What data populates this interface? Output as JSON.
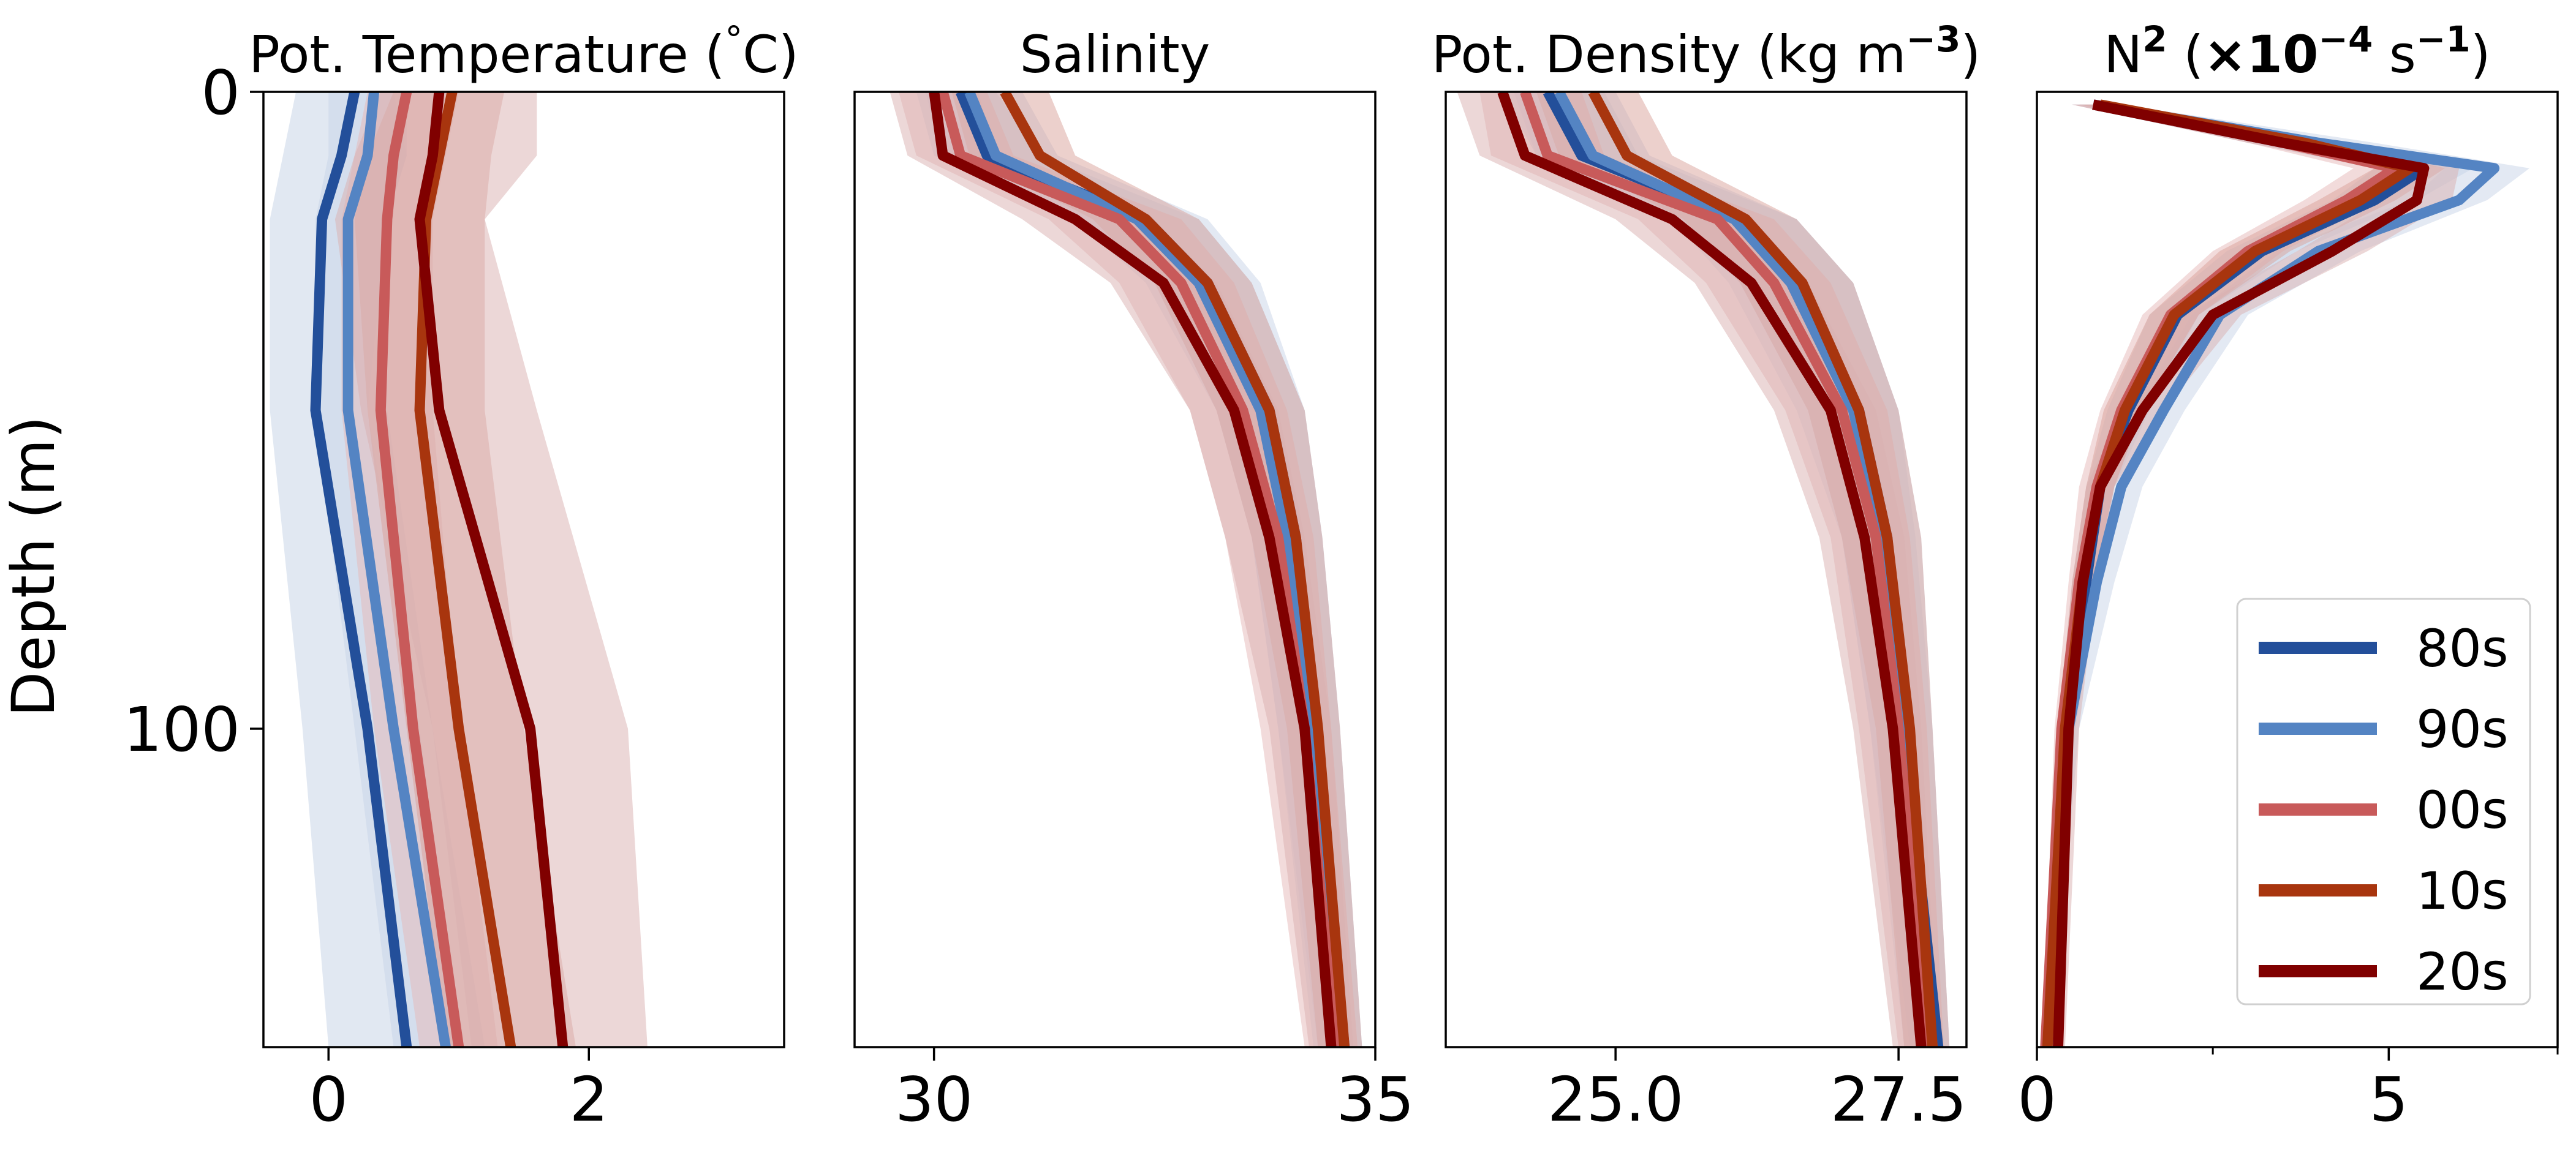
{
  "figure": {
    "ylabel": "Depth (m)",
    "depth_ticks": [
      "0",
      "100"
    ],
    "colors": {
      "80s": "#234f9a",
      "90s": "#5484c3",
      "00s": "#c85a5a",
      "10s": "#a8350e",
      "20s": "#800000"
    },
    "band_colors": {
      "80s": "#c3d1e6",
      "90s": "#c8d4e8",
      "00s": "#e6b8b8",
      "10s": "#d9a29a",
      "20s": "#d9b0b0"
    },
    "legend": {
      "placement": "lower right",
      "entries": [
        "80s",
        "90s",
        "00s",
        "10s",
        "20s"
      ]
    }
  },
  "chart_data": [
    {
      "type": "line",
      "title_parts": [
        {
          "text": "Pot. Temperature (",
          "style": "normal"
        },
        {
          "text": "°",
          "style": "sup"
        },
        {
          "text": "C)",
          "style": "normal"
        }
      ],
      "xlim": [
        -0.5,
        3.5
      ],
      "ylim": [
        150,
        0
      ],
      "xticks": [
        {
          "value": 0,
          "label": "0"
        },
        {
          "value": 2,
          "label": "2"
        }
      ],
      "depth": [
        0,
        10,
        20,
        50,
        100,
        150
      ],
      "series": [
        {
          "name": "80s",
          "values": [
            0.2,
            0.1,
            -0.05,
            -0.1,
            0.3,
            0.6
          ],
          "lower": [
            -0.25,
            -0.35,
            -0.45,
            -0.45,
            -0.2,
            0.0
          ],
          "upper": [
            0.5,
            0.6,
            0.45,
            0.3,
            0.7,
            1.0
          ]
        },
        {
          "name": "90s",
          "values": [
            0.35,
            0.3,
            0.15,
            0.15,
            0.5,
            0.9
          ],
          "lower": [
            0.0,
            0.0,
            -0.1,
            -0.1,
            0.2,
            0.5
          ],
          "upper": [
            0.6,
            0.6,
            0.45,
            0.45,
            0.8,
            1.2
          ]
        },
        {
          "name": "00s",
          "values": [
            0.6,
            0.5,
            0.45,
            0.4,
            0.65,
            1.0
          ],
          "lower": [
            0.3,
            0.2,
            0.1,
            0.1,
            0.35,
            0.7
          ],
          "upper": [
            1.0,
            0.9,
            0.8,
            0.8,
            1.0,
            1.3
          ]
        },
        {
          "name": "10s",
          "values": [
            0.95,
            0.85,
            0.75,
            0.7,
            1.0,
            1.4
          ],
          "lower": [
            0.5,
            0.3,
            0.2,
            0.3,
            0.6,
            0.9
          ],
          "upper": [
            1.35,
            1.25,
            1.2,
            1.2,
            1.5,
            1.9
          ]
        },
        {
          "name": "20s",
          "values": [
            0.85,
            0.8,
            0.7,
            0.85,
            1.55,
            1.8
          ],
          "lower": [
            0.4,
            0.2,
            0.05,
            0.25,
            0.8,
            1.1
          ],
          "upper": [
            1.6,
            1.6,
            1.2,
            1.6,
            2.3,
            2.45
          ]
        }
      ]
    },
    {
      "type": "line",
      "title_parts": [
        {
          "text": "Salinity",
          "style": "normal"
        }
      ],
      "xlim": [
        29.1,
        35.0
      ],
      "ylim": [
        150,
        0
      ],
      "xticks": [
        {
          "value": 30,
          "label": "30"
        },
        {
          "value": 35,
          "label": "35"
        }
      ],
      "depth": [
        0,
        10,
        20,
        30,
        50,
        70,
        100,
        150
      ],
      "series": [
        {
          "name": "80s",
          "values": [
            30.3,
            30.6,
            32.4,
            33.1,
            33.8,
            34.1,
            34.3,
            34.65
          ],
          "lower": [
            29.8,
            30.0,
            31.6,
            32.5,
            33.2,
            33.6,
            33.9,
            34.35
          ],
          "upper": [
            30.7,
            31.2,
            33.0,
            33.6,
            34.2,
            34.4,
            34.6,
            34.85
          ]
        },
        {
          "name": "90s",
          "values": [
            30.4,
            30.7,
            32.3,
            33.0,
            33.7,
            34.0,
            34.3,
            34.6
          ],
          "lower": [
            29.9,
            30.1,
            31.6,
            32.4,
            33.2,
            33.6,
            33.9,
            34.3
          ],
          "upper": [
            31.0,
            31.4,
            33.1,
            33.7,
            34.2,
            34.4,
            34.6,
            34.85
          ]
        },
        {
          "name": "00s",
          "values": [
            30.1,
            30.3,
            32.1,
            32.8,
            33.5,
            33.9,
            34.2,
            34.55
          ],
          "lower": [
            29.6,
            29.8,
            31.3,
            32.1,
            32.9,
            33.3,
            33.7,
            34.2
          ],
          "upper": [
            30.6,
            30.9,
            32.8,
            33.4,
            34.0,
            34.3,
            34.5,
            34.8
          ]
        },
        {
          "name": "10s",
          "values": [
            30.8,
            31.2,
            32.4,
            33.1,
            33.8,
            34.1,
            34.35,
            34.65
          ],
          "lower": [
            30.2,
            30.4,
            31.8,
            32.5,
            33.2,
            33.6,
            34.0,
            34.35
          ],
          "upper": [
            31.3,
            31.6,
            33.0,
            33.6,
            34.2,
            34.4,
            34.6,
            34.85
          ]
        },
        {
          "name": "20s",
          "values": [
            30.0,
            30.1,
            31.6,
            32.6,
            33.4,
            33.8,
            34.2,
            34.5
          ],
          "lower": [
            29.5,
            29.7,
            31.0,
            32.0,
            32.9,
            33.3,
            33.8,
            34.25
          ],
          "upper": [
            30.5,
            30.7,
            32.3,
            33.2,
            33.9,
            34.2,
            34.5,
            34.75
          ]
        }
      ]
    },
    {
      "type": "line",
      "title_parts": [
        {
          "text": "Pot. Density (kg m",
          "style": "normal"
        },
        {
          "text": "−3",
          "style": "sup-bold"
        },
        {
          "text": ")",
          "style": "normal"
        }
      ],
      "xlim": [
        23.5,
        28.1
      ],
      "ylim": [
        150,
        0
      ],
      "xticks": [
        {
          "value": 25,
          "label": "25.0"
        },
        {
          "value": 27.5,
          "label": "27.5"
        }
      ],
      "depth": [
        0,
        10,
        20,
        30,
        50,
        70,
        100,
        150
      ],
      "series": [
        {
          "name": "80s",
          "values": [
            24.4,
            24.7,
            26.1,
            26.6,
            27.15,
            27.4,
            27.55,
            27.85
          ],
          "lower": [
            24.0,
            24.3,
            25.5,
            26.1,
            26.7,
            27.0,
            27.25,
            27.6
          ],
          "upper": [
            24.9,
            25.2,
            26.6,
            27.1,
            27.5,
            27.7,
            27.8,
            27.95
          ]
        },
        {
          "name": "90s",
          "values": [
            24.5,
            24.8,
            26.05,
            26.55,
            27.1,
            27.35,
            27.55,
            27.8
          ],
          "lower": [
            24.1,
            24.3,
            25.5,
            26.0,
            26.6,
            27.0,
            27.25,
            27.55
          ],
          "upper": [
            25.0,
            25.3,
            26.6,
            27.1,
            27.5,
            27.65,
            27.8,
            27.95
          ]
        },
        {
          "name": "00s",
          "values": [
            24.2,
            24.4,
            25.9,
            26.4,
            27.0,
            27.3,
            27.5,
            27.75
          ],
          "lower": [
            23.8,
            23.9,
            25.2,
            25.8,
            26.5,
            26.9,
            27.15,
            27.5
          ],
          "upper": [
            24.7,
            24.9,
            26.4,
            26.9,
            27.4,
            27.6,
            27.75,
            27.9
          ]
        },
        {
          "name": "10s",
          "values": [
            24.8,
            25.1,
            26.15,
            26.65,
            27.15,
            27.4,
            27.6,
            27.8
          ],
          "lower": [
            24.3,
            24.5,
            25.6,
            26.1,
            26.7,
            27.0,
            27.3,
            27.55
          ],
          "upper": [
            25.2,
            25.5,
            26.6,
            27.1,
            27.5,
            27.7,
            27.8,
            27.95
          ]
        },
        {
          "name": "20s",
          "values": [
            24.0,
            24.2,
            25.5,
            26.2,
            26.9,
            27.2,
            27.45,
            27.7
          ],
          "lower": [
            23.6,
            23.8,
            25.0,
            25.7,
            26.4,
            26.8,
            27.1,
            27.45
          ],
          "upper": [
            24.5,
            24.7,
            26.0,
            26.7,
            27.3,
            27.55,
            27.7,
            27.85
          ]
        }
      ]
    },
    {
      "type": "line",
      "title_parts": [
        {
          "text": "N",
          "style": "normal"
        },
        {
          "text": "2",
          "style": "sup-bold"
        },
        {
          "text": " (",
          "style": "normal"
        },
        {
          "text": "×10",
          "style": "bold"
        },
        {
          "text": "−4",
          "style": "sup-bold"
        },
        {
          "text": " s",
          "style": "normal"
        },
        {
          "text": "−1",
          "style": "sup-bold"
        },
        {
          "text": ")",
          "style": "normal"
        }
      ],
      "xlim": [
        0,
        7.4
      ],
      "ylim": [
        150,
        0
      ],
      "xticks": [
        {
          "value": 0,
          "label": "0"
        },
        {
          "value": 5,
          "label": "5"
        }
      ],
      "xticks_minor": [
        2.5,
        7.4
      ],
      "depth": [
        2,
        8,
        12,
        17,
        25,
        35,
        50,
        62,
        77,
        100,
        150
      ],
      "series": [
        {
          "name": "80s",
          "values": [
            0.8,
            3.5,
            5.5,
            4.8,
            3.2,
            2.0,
            1.3,
            0.9,
            0.7,
            0.4,
            0.15
          ],
          "lower": [
            0.5,
            3.0,
            4.8,
            4.2,
            2.7,
            1.6,
            1.0,
            0.7,
            0.5,
            0.3,
            0.1
          ],
          "upper": [
            1.1,
            4.2,
            6.2,
            5.4,
            3.7,
            2.3,
            1.6,
            1.1,
            0.9,
            0.55,
            0.2
          ]
        },
        {
          "name": "90s",
          "values": [
            0.8,
            4.0,
            6.5,
            6.0,
            4.0,
            2.6,
            1.8,
            1.2,
            0.85,
            0.45,
            0.15
          ],
          "lower": [
            0.5,
            3.5,
            5.8,
            5.3,
            3.4,
            2.2,
            1.4,
            1.0,
            0.6,
            0.35,
            0.1
          ],
          "upper": [
            1.2,
            4.8,
            7.0,
            6.4,
            4.6,
            3.0,
            2.1,
            1.5,
            1.1,
            0.6,
            0.2
          ]
        },
        {
          "name": "00s",
          "values": [
            0.8,
            3.5,
            5.1,
            4.4,
            3.0,
            1.9,
            1.2,
            0.85,
            0.6,
            0.35,
            0.12
          ],
          "lower": [
            0.5,
            3.0,
            4.5,
            3.8,
            2.5,
            1.5,
            0.9,
            0.6,
            0.45,
            0.25,
            0.08
          ],
          "upper": [
            1.1,
            4.0,
            5.6,
            4.9,
            3.5,
            2.3,
            1.5,
            1.1,
            0.8,
            0.5,
            0.2
          ]
        },
        {
          "name": "10s",
          "values": [
            0.9,
            3.8,
            5.3,
            4.6,
            3.1,
            1.95,
            1.25,
            0.9,
            0.65,
            0.4,
            0.15
          ],
          "lower": [
            0.6,
            3.3,
            4.8,
            4.0,
            2.6,
            1.6,
            0.95,
            0.7,
            0.5,
            0.3,
            0.1
          ],
          "upper": [
            1.2,
            4.3,
            5.8,
            5.1,
            3.6,
            2.3,
            1.5,
            1.1,
            0.8,
            0.5,
            0.2
          ]
        },
        {
          "name": "20s",
          "values": [
            0.8,
            3.5,
            5.5,
            5.4,
            4.2,
            2.5,
            1.5,
            0.9,
            0.65,
            0.45,
            0.3
          ],
          "lower": [
            0.5,
            3.0,
            4.9,
            4.9,
            3.7,
            2.1,
            1.2,
            0.7,
            0.5,
            0.35,
            0.2
          ],
          "upper": [
            1.1,
            4.0,
            6.0,
            5.9,
            4.7,
            2.9,
            1.8,
            1.1,
            0.85,
            0.6,
            0.4
          ]
        }
      ]
    }
  ]
}
